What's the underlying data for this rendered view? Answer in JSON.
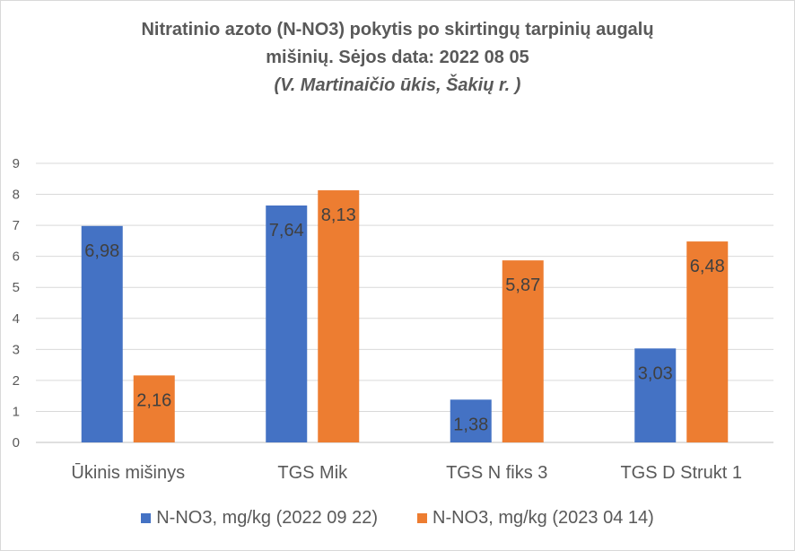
{
  "chart_data": {
    "type": "bar",
    "title": "Nitratinio azoto (N-NO3) pokytis po skirtingų tarpinių augalų",
    "title_line2": "mišinių.  Sėjos data:  2022 08 05",
    "subtitle": "(V. Martinaičio ūkis, Šakių r. )",
    "categories": [
      "Ūkinis mišinys",
      "TGS Mik",
      "TGS N fiks 3",
      "TGS D Strukt 1"
    ],
    "series": [
      {
        "name": "N-NO3, mg/kg (2022 09 22)",
        "values": [
          6.98,
          7.64,
          1.38,
          3.03
        ],
        "labels": [
          "6,98",
          "7,64",
          "1,38",
          "3,03"
        ],
        "color": "#4472c4"
      },
      {
        "name": "N-NO3, mg/kg (2023 04 14)",
        "values": [
          2.16,
          8.13,
          5.87,
          6.48
        ],
        "labels": [
          "2,16",
          "8,13",
          "5,87",
          "6,48"
        ],
        "color": "#ed7d31"
      }
    ],
    "yticks": [
      "0",
      "1",
      "2",
      "3",
      "4",
      "5",
      "6",
      "7",
      "8",
      "9"
    ],
    "ylim": [
      0,
      9
    ],
    "grid": true,
    "legend_position": "bottom"
  }
}
